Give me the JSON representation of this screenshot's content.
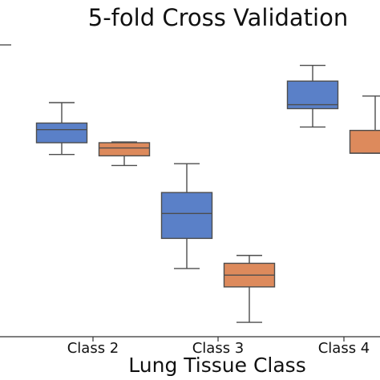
{
  "chart_data": {
    "type": "box",
    "title": "5-fold Cross Validation",
    "xlabel": "Lung Tissue Class",
    "ylabel": "",
    "ylim": [
      0,
      1
    ],
    "grid": false,
    "categories": [
      "Class 2",
      "Class 3",
      "Class 4"
    ],
    "series": [
      {
        "color": "#5a80c8",
        "boxes": [
          {
            "category": "Class 2",
            "whisker_low": 0.695,
            "q1": 0.74,
            "median": 0.79,
            "q3": 0.815,
            "whisker_high": 0.893
          },
          {
            "category": "Class 3",
            "whisker_low": 0.26,
            "q1": 0.375,
            "median": 0.47,
            "q3": 0.55,
            "whisker_high": 0.66
          },
          {
            "category": "Class 4",
            "whisker_low": 0.8,
            "q1": 0.87,
            "median": 0.885,
            "q3": 0.975,
            "whisker_high": 1.035
          }
        ]
      },
      {
        "color": "#dd8a5c",
        "boxes": [
          {
            "category": "Class 2",
            "whisker_low": 0.653,
            "q1": 0.69,
            "median": 0.72,
            "q3": 0.74,
            "whisker_high": 0.743
          },
          {
            "category": "Class 3",
            "whisker_low": 0.055,
            "q1": 0.19,
            "median": 0.235,
            "q3": 0.28,
            "whisker_high": 0.31
          },
          {
            "category": "Class 4",
            "whisker_low": 0.7,
            "q1": 0.7,
            "median": 0.7,
            "q3": 0.787,
            "whisker_high": 0.918
          }
        ]
      }
    ]
  }
}
